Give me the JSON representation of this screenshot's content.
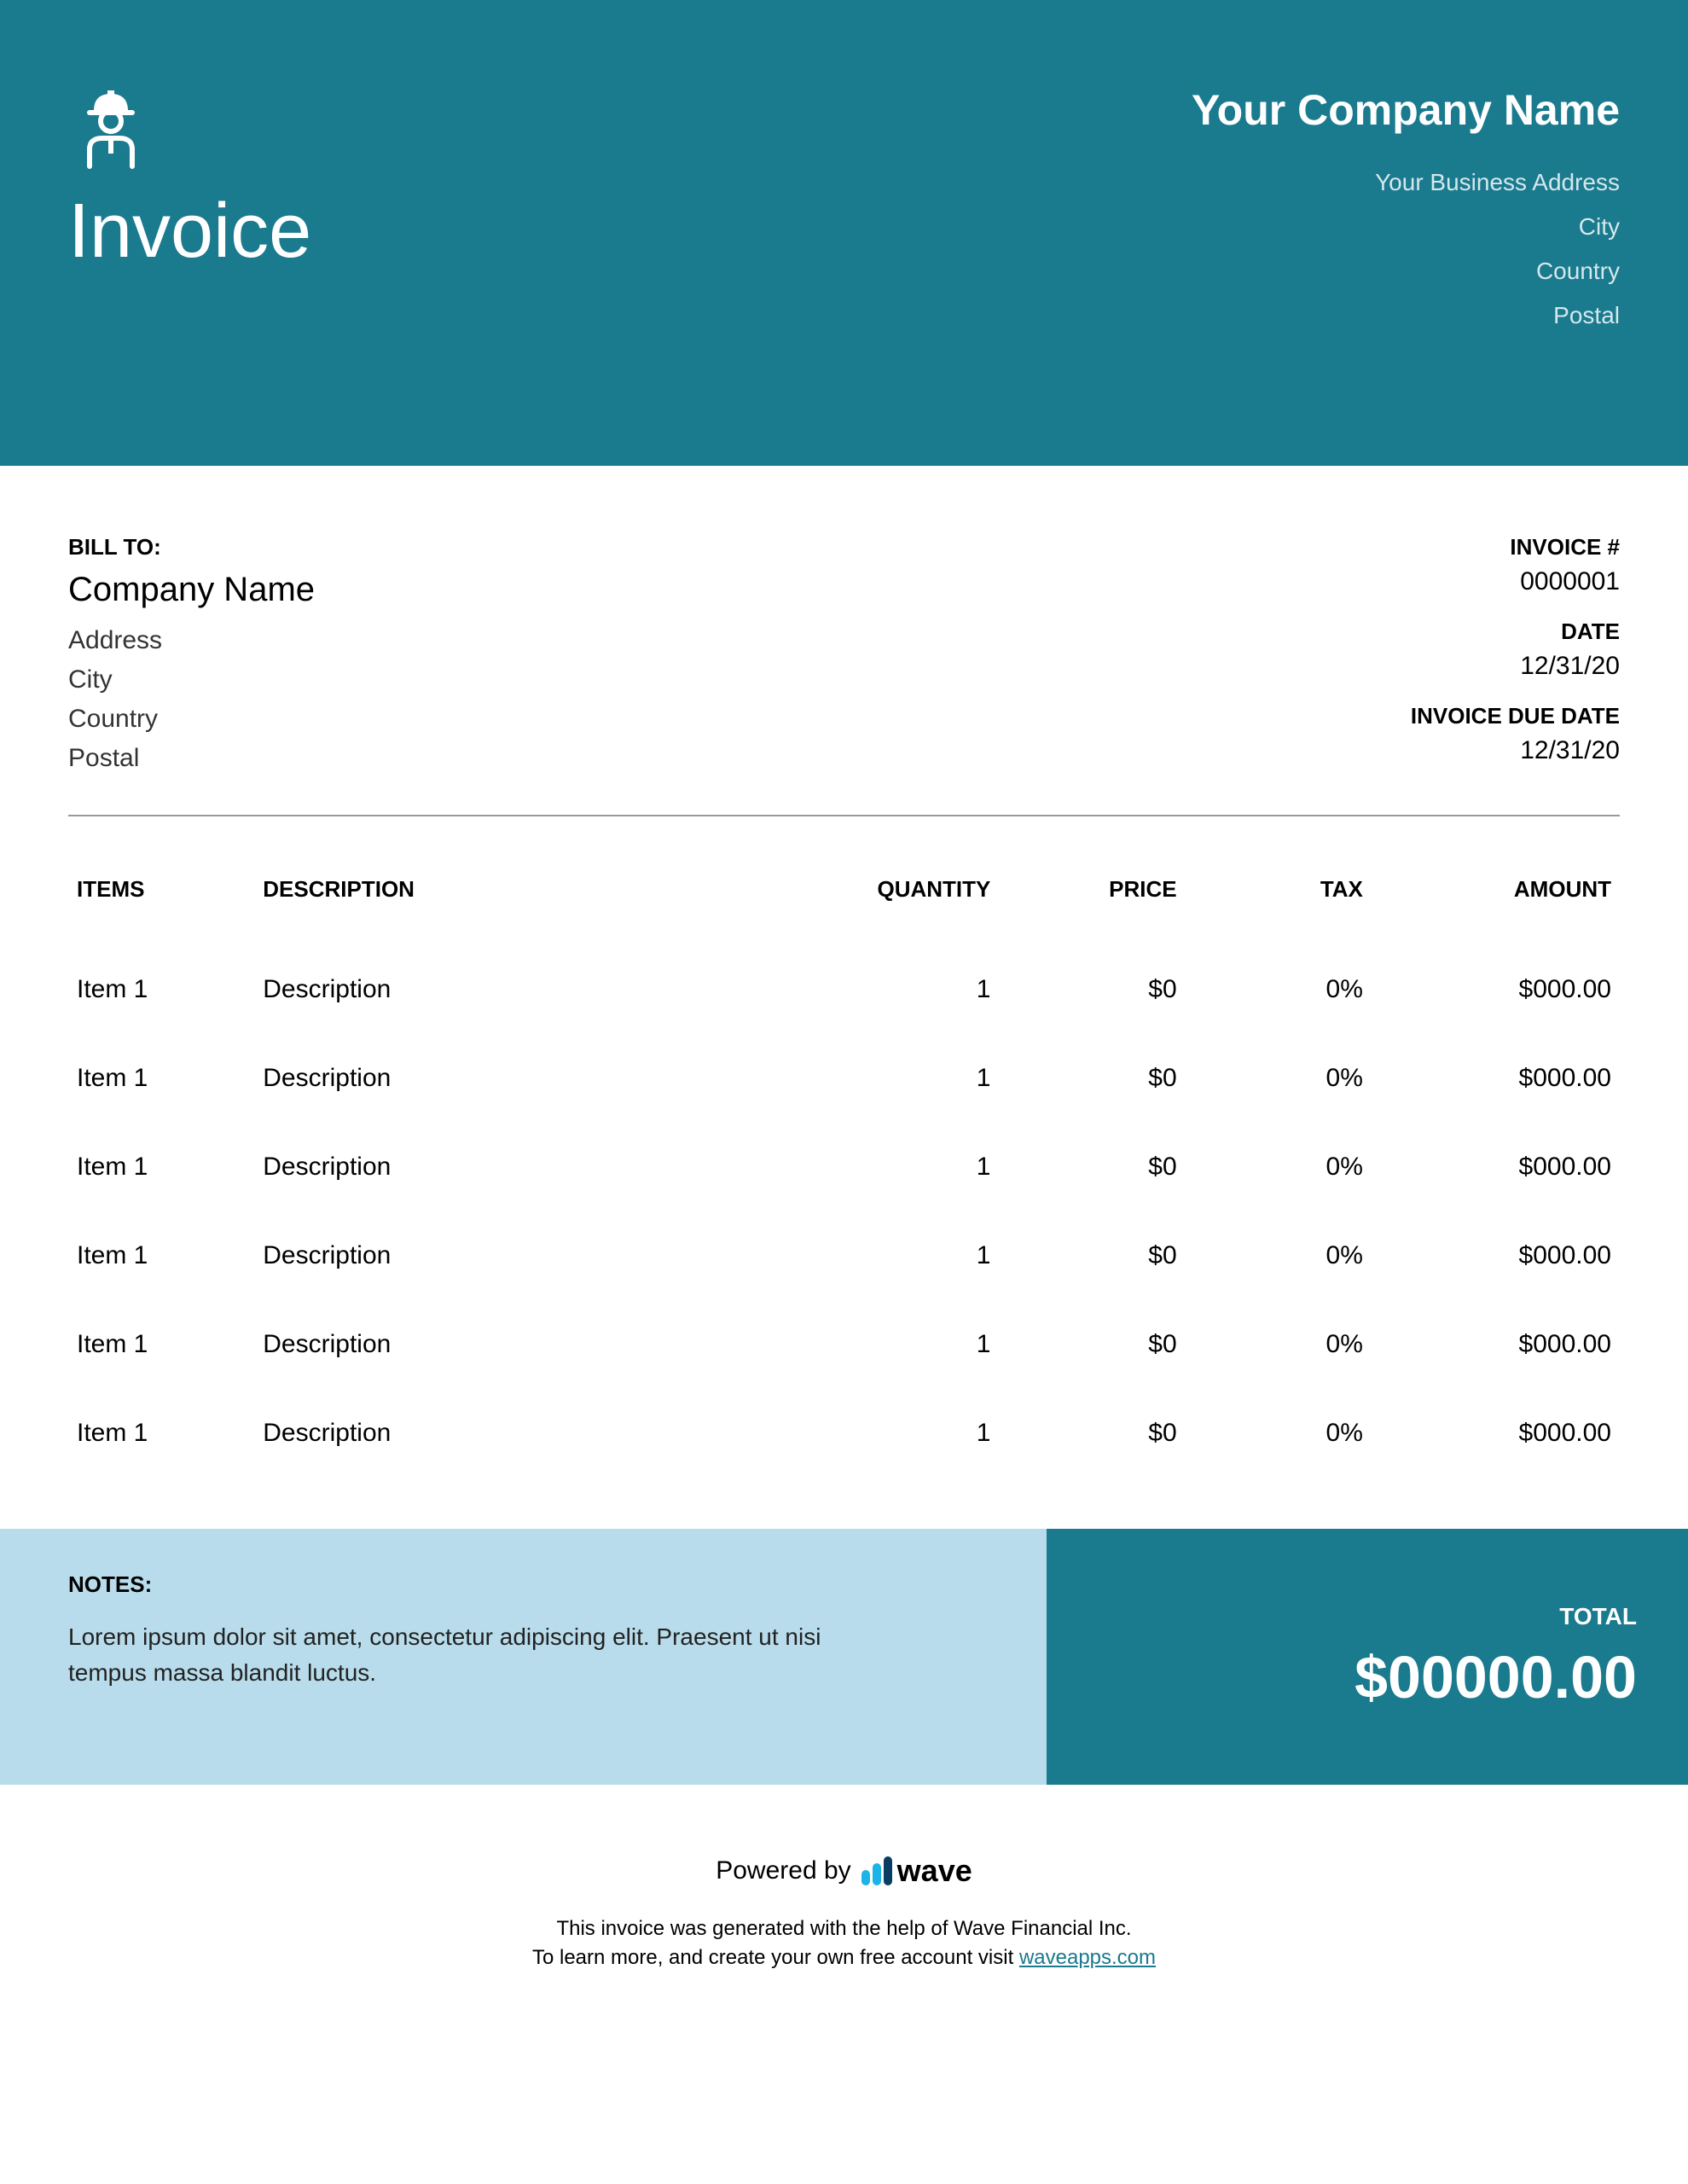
{
  "colors": {
    "primary": "#1a7a8e",
    "notes_bg": "#b8dceb",
    "white": "#ffffff",
    "text": "#000000",
    "wave_blue": "#1ab4e8",
    "wave_dark": "#0a3d62"
  },
  "header": {
    "title": "Invoice",
    "company_name": "Your Company Name",
    "address": "Your Business Address",
    "city": "City",
    "country": "Country",
    "postal": "Postal"
  },
  "bill_to": {
    "label": "BILL TO:",
    "company": "Company Name",
    "address": "Address",
    "city": "City",
    "country": "Country",
    "postal": "Postal"
  },
  "invoice_meta": {
    "number_label": "INVOICE #",
    "number": "0000001",
    "date_label": "DATE",
    "date": "12/31/20",
    "due_label": "INVOICE DUE DATE",
    "due": "12/31/20"
  },
  "table": {
    "headers": {
      "items": "ITEMS",
      "description": "DESCRIPTION",
      "quantity": "QUANTITY",
      "price": "PRICE",
      "tax": "TAX",
      "amount": "AMOUNT"
    },
    "rows": [
      {
        "item": "Item 1",
        "description": "Description",
        "quantity": "1",
        "price": "$0",
        "tax": "0%",
        "amount": "$000.00"
      },
      {
        "item": "Item 1",
        "description": "Description",
        "quantity": "1",
        "price": "$0",
        "tax": "0%",
        "amount": "$000.00"
      },
      {
        "item": "Item 1",
        "description": "Description",
        "quantity": "1",
        "price": "$0",
        "tax": "0%",
        "amount": "$000.00"
      },
      {
        "item": "Item 1",
        "description": "Description",
        "quantity": "1",
        "price": "$0",
        "tax": "0%",
        "amount": "$000.00"
      },
      {
        "item": "Item 1",
        "description": "Description",
        "quantity": "1",
        "price": "$0",
        "tax": "0%",
        "amount": "$000.00"
      },
      {
        "item": "Item 1",
        "description": "Description",
        "quantity": "1",
        "price": "$0",
        "tax": "0%",
        "amount": "$000.00"
      }
    ]
  },
  "notes": {
    "label": "NOTES:",
    "text": "Lorem ipsum dolor sit amet, consectetur adipiscing elit. Praesent ut nisi tempus massa blandit luctus."
  },
  "total": {
    "label": "TOTAL",
    "amount": "$00000.00"
  },
  "footer": {
    "powered_by": "Powered by",
    "wave": "wave",
    "line1": "This invoice was generated with the help of Wave Financial Inc.",
    "line2_prefix": "To learn more, and create your own free account visit ",
    "link": "waveapps.com"
  }
}
